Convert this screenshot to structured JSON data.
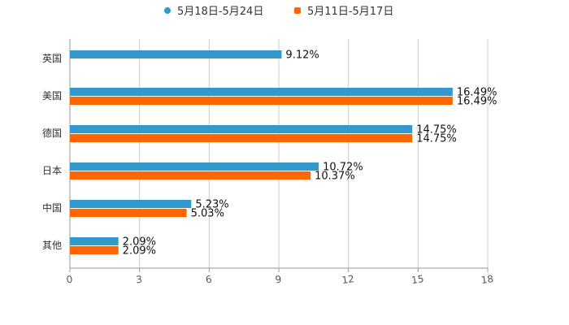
{
  "chart_data": {
    "type": "bar",
    "orientation": "horizontal",
    "categories": [
      "英国",
      "美国",
      "德国",
      "日本",
      "中国",
      "其他"
    ],
    "series": [
      {
        "name": "5月18日-5月24日",
        "color": "#3399CC",
        "values": [
          9.12,
          16.49,
          14.75,
          10.72,
          5.23,
          2.09
        ],
        "labels": [
          "9.12%",
          "16.49%",
          "14.75%",
          "10.72%",
          "5.23%",
          "2.09%"
        ]
      },
      {
        "name": "5月11日-5月17日",
        "color": "#FF6600",
        "values": [
          null,
          16.49,
          14.75,
          10.37,
          5.03,
          2.09
        ],
        "labels": [
          "",
          "16.49%",
          "14.75%",
          "10.37%",
          "5.03%",
          "2.09%"
        ]
      }
    ],
    "xlim": [
      0,
      18
    ],
    "xticks": [
      "0",
      "3",
      "6",
      "9",
      "12",
      "15",
      "18"
    ],
    "legend_position": "top-center",
    "grid": true,
    "title": "",
    "xlabel": "",
    "ylabel": ""
  }
}
